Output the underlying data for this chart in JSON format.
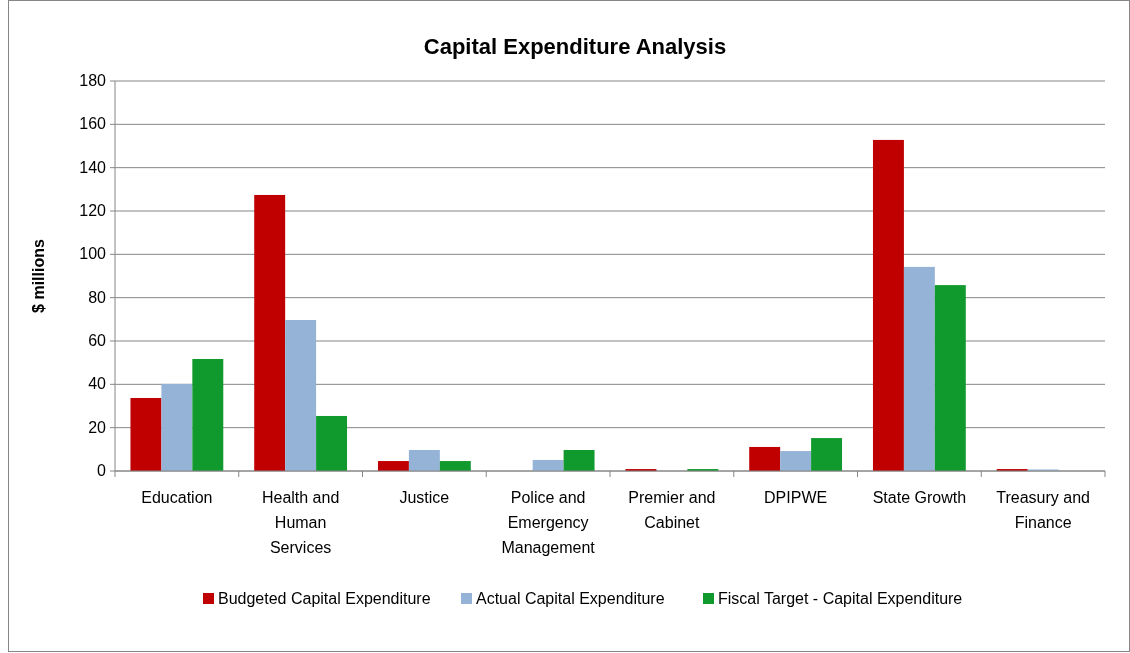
{
  "chart_data": {
    "type": "bar",
    "title": "Capital Expenditure Analysis",
    "ylabel": "$ millions",
    "categories": [
      "Education",
      "Health and Human Services",
      "Justice",
      "Police and Emergency Management",
      "Premier and Cabinet",
      "DPIPWE",
      "State Growth",
      "Treasury and Finance"
    ],
    "series": [
      {
        "name": "Budgeted Capital Expenditure",
        "color": "#c00000",
        "values": [
          33.7,
          127.4,
          4.6,
          null,
          0.9,
          11.1,
          152.8,
          0.9
        ]
      },
      {
        "name": "Actual Capital Expenditure",
        "color": "#95b3d7",
        "values": [
          40.2,
          69.7,
          9.7,
          5.1,
          0,
          9.2,
          94.2,
          0.7
        ]
      },
      {
        "name": "Fiscal Target - Capital Expenditure",
        "color": "#109a2d",
        "values": [
          51.7,
          25.4,
          4.6,
          9.7,
          0.9,
          15.2,
          85.8,
          null
        ]
      }
    ],
    "ylim": [
      0,
      180
    ],
    "yticks": [
      0,
      20,
      40,
      60,
      80,
      100,
      120,
      140,
      160,
      180
    ],
    "grid": "y",
    "legend": "bottom"
  }
}
